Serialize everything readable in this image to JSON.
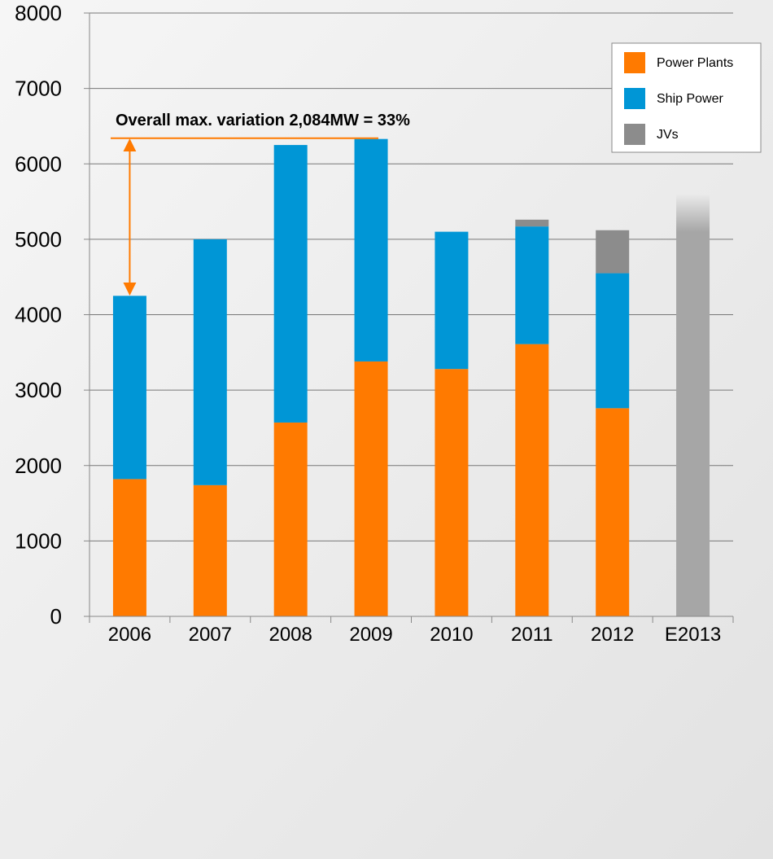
{
  "chart_data": {
    "type": "bar",
    "stacked": true,
    "categories": [
      "2006",
      "2007",
      "2008",
      "2009",
      "2010",
      "2011",
      "2012",
      "E2013"
    ],
    "series": [
      {
        "name": "Power Plants",
        "color": "#ff7a00",
        "values": [
          1820,
          1740,
          2570,
          3380,
          3280,
          3610,
          2760,
          null
        ]
      },
      {
        "name": "Ship Power",
        "color": "#0096d6",
        "values": [
          2430,
          3260,
          3680,
          2950,
          1820,
          1560,
          1790,
          null
        ]
      },
      {
        "name": "JVs",
        "color": "#8c8c8c",
        "values": [
          0,
          0,
          0,
          0,
          0,
          90,
          570,
          null
        ]
      }
    ],
    "estimate": {
      "category": "E2013",
      "value": 5600,
      "color": "#a6a6a6"
    },
    "ylim": [
      0,
      8000
    ],
    "yticks": [
      0,
      1000,
      2000,
      3000,
      4000,
      5000,
      6000,
      7000,
      8000
    ],
    "grid": true,
    "legend_position": "top-right",
    "annotation": {
      "text": "Overall max. variation  2,084MW = 33%",
      "from_category": "2006",
      "from_value": 4250,
      "to_value": 6340,
      "color": "#ff7a00"
    },
    "colors": {
      "axis": "#888888",
      "grid": "#777777",
      "text": "#000000"
    }
  }
}
